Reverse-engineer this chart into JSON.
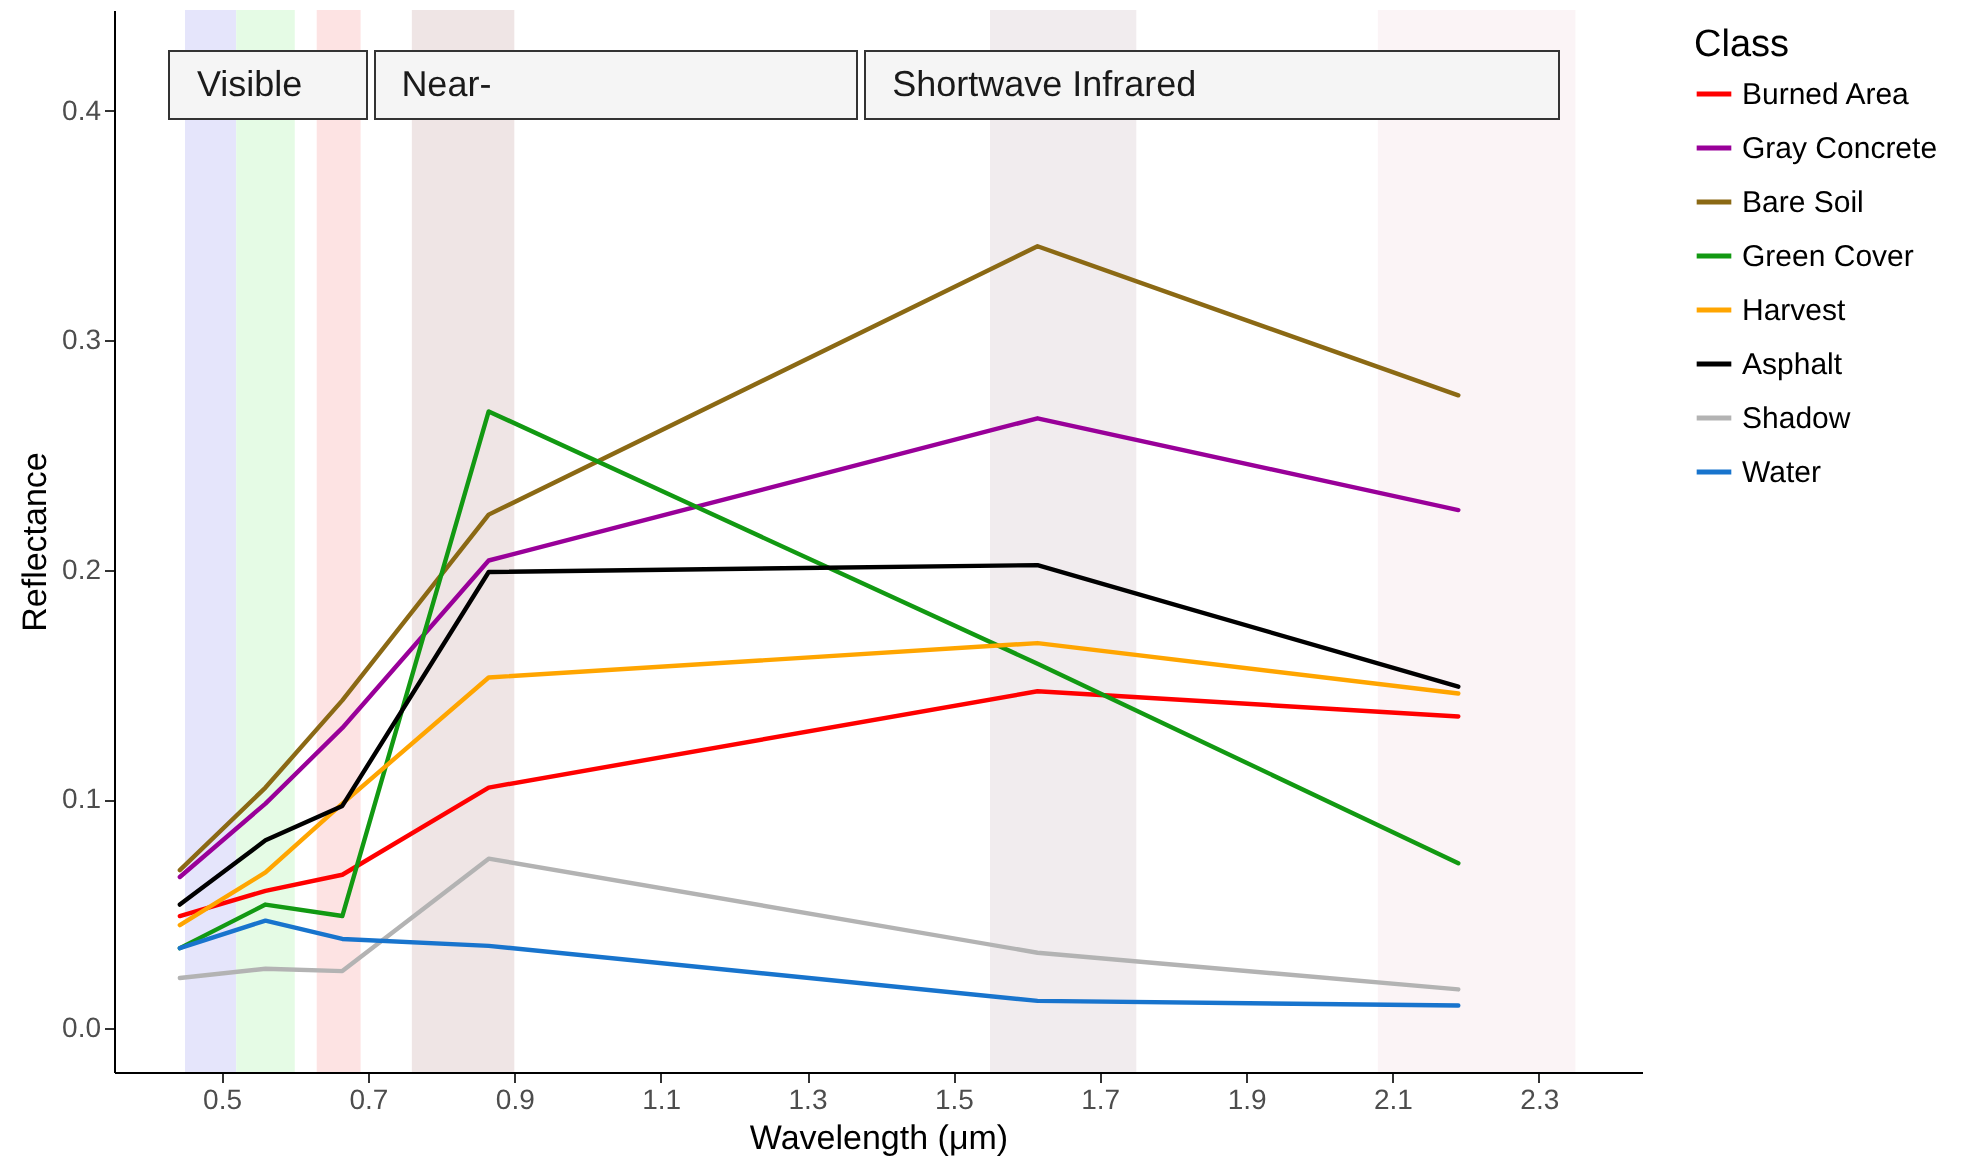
{
  "chart_data": {
    "type": "line",
    "xlabel": "Wavelength (μm)",
    "ylabel": "Reflectance",
    "legend_title": "Class",
    "legend": "right",
    "grid": false,
    "x": [
      0.443,
      0.56,
      0.665,
      0.865,
      1.615,
      2.19
    ],
    "xlim": [
      0.353,
      2.441
    ],
    "xticks": [
      0.5,
      0.7,
      0.9,
      1.1,
      1.3,
      1.5,
      1.7,
      1.9,
      2.1,
      2.3
    ],
    "ylim": [
      -0.019,
      0.444
    ],
    "yticks": [
      {
        "value": 0,
        "label": "0.0"
      },
      0.1,
      0.2,
      0.3,
      0.4
    ],
    "series": [
      {
        "name": "Burned Area",
        "color": "#ff0000",
        "values": [
          0.049,
          0.06,
          0.067,
          0.105,
          0.147,
          0.136
        ]
      },
      {
        "name": "Gray Concrete",
        "color": "#990099",
        "values": [
          0.066,
          0.098,
          0.131,
          0.204,
          0.266,
          0.226
        ]
      },
      {
        "name": "Bare Soil",
        "color": "#8b6914",
        "values": [
          0.069,
          0.105,
          0.143,
          0.224,
          0.341,
          0.276
        ]
      },
      {
        "name": "Green Cover",
        "color": "#129912",
        "values": [
          0.035,
          0.054,
          0.049,
          0.269,
          0.159,
          0.072
        ]
      },
      {
        "name": "Harvest",
        "color": "#ffa500",
        "values": [
          0.045,
          0.068,
          0.098,
          0.153,
          0.168,
          0.146
        ]
      },
      {
        "name": "Asphalt",
        "color": "#000000",
        "values": [
          0.054,
          0.082,
          0.097,
          0.199,
          0.202,
          0.149
        ]
      },
      {
        "name": "Shadow",
        "color": "#b3b3b3",
        "values": [
          0.022,
          0.026,
          0.025,
          0.074,
          0.033,
          0.017
        ]
      },
      {
        "name": "Water",
        "color": "#1874cd",
        "values": [
          0.035,
          0.047,
          0.039,
          0.036,
          0.012,
          0.01
        ]
      }
    ],
    "bands": [
      {
        "axis": "x",
        "from": 0.45,
        "to": 0.52,
        "color": "#e5e5fb"
      },
      {
        "axis": "x",
        "from": 0.52,
        "to": 0.6,
        "color": "#e5fbe5"
      },
      {
        "axis": "x",
        "from": 0.63,
        "to": 0.69,
        "color": "#fde3e3"
      },
      {
        "axis": "x",
        "from": 0.76,
        "to": 0.9,
        "color": "#efe5e5"
      },
      {
        "axis": "x",
        "from": 1.55,
        "to": 1.75,
        "color": "#f1ecee"
      },
      {
        "axis": "x",
        "from": 2.08,
        "to": 2.35,
        "color": "#fbf4f6"
      }
    ],
    "annotations": [
      "Visible",
      "Near-",
      "Shortwave Infrared"
    ]
  }
}
